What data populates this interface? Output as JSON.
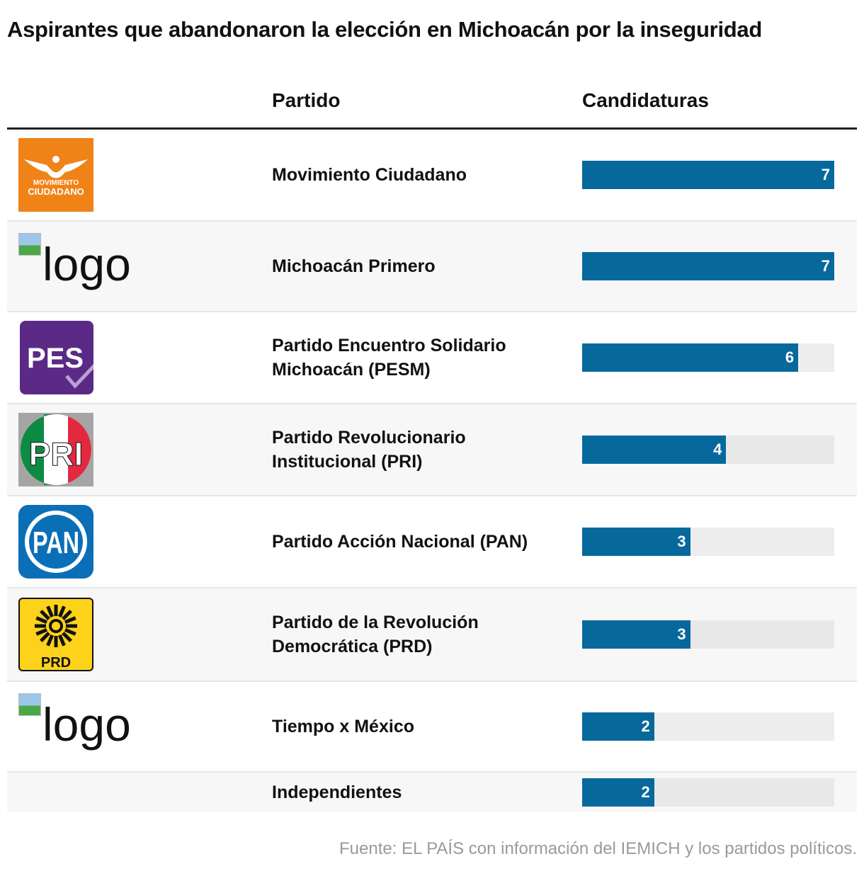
{
  "title": "Aspirantes que abandonaron la elección en Michoacán por la inseguridad",
  "headers": {
    "party": "Partido",
    "count": "Candidaturas"
  },
  "source": "Fuente: EL PAÍS con información del IEMICH y los partidos políticos.",
  "colors": {
    "bar": "#07699b",
    "track": "#ededed"
  },
  "chart_data": {
    "type": "bar",
    "title": "Aspirantes que abandonaron la elección en Michoacán por la inseguridad",
    "xlabel": "Candidaturas",
    "ylabel": "Partido",
    "xlim": [
      0,
      7
    ],
    "categories": [
      "Movimiento Ciudadano",
      "Michoacán Primero",
      "Partido Encuentro Solidario Michoacán (PESM)",
      "Partido Revolucionario Institucional (PRI)",
      "Partido Acción Nacional (PAN)",
      "Partido de la Revolución Democrática (PRD)",
      "Tiempo x México",
      "Independientes"
    ],
    "values": [
      7,
      7,
      6,
      4,
      3,
      3,
      2,
      2
    ]
  },
  "rows": [
    {
      "logo": "mc",
      "logo_text": "MOVIMIENTO CIUDADANO",
      "h": 130
    },
    {
      "logo": "broken",
      "logo_alt": "logo",
      "h": 128
    },
    {
      "logo": "pes",
      "logo_text": "PES",
      "h": 130
    },
    {
      "logo": "pri",
      "logo_text": "PRI",
      "h": 130
    },
    {
      "logo": "pan",
      "logo_text": "PAN",
      "h": 130
    },
    {
      "logo": "prd",
      "logo_text": "PRD",
      "h": 132
    },
    {
      "logo": "broken",
      "logo_alt": "logo",
      "h": 128
    },
    {
      "logo": "none",
      "h": 55
    }
  ]
}
